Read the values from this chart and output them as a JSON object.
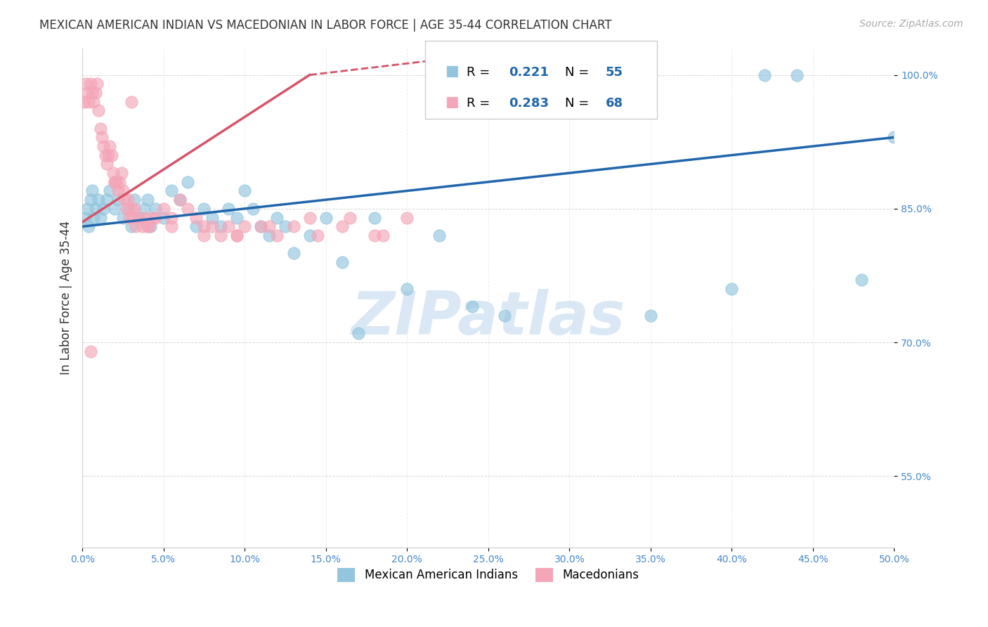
{
  "title": "MEXICAN AMERICAN INDIAN VS MACEDONIAN IN LABOR FORCE | AGE 35-44 CORRELATION CHART",
  "source": "Source: ZipAtlas.com",
  "ylabel": "In Labor Force | Age 35-44",
  "xlim": [
    0.0,
    50.0
  ],
  "ylim": [
    47.0,
    103.0
  ],
  "xticks": [
    0.0,
    5.0,
    10.0,
    15.0,
    20.0,
    25.0,
    30.0,
    35.0,
    40.0,
    45.0,
    50.0
  ],
  "xtick_labels": [
    "0.0%",
    "5.0%",
    "10.0%",
    "15.0%",
    "20.0%",
    "25.0%",
    "30.0%",
    "35.0%",
    "40.0%",
    "45.0%",
    "50.0%"
  ],
  "ytick_vals": [
    55.0,
    70.0,
    85.0,
    100.0
  ],
  "ytick_labels": [
    "55.0%",
    "70.0%",
    "85.0%",
    "100.0%"
  ],
  "legend_labels": [
    "Mexican American Indians",
    "Macedonians"
  ],
  "legend_R": [
    0.221,
    0.283
  ],
  "legend_N": [
    55,
    68
  ],
  "blue_color": "#92c5de",
  "pink_color": "#f4a6b8",
  "blue_line_color": "#2166ac",
  "pink_line_color": "#d6546a",
  "watermark": "ZIPatlas",
  "watermark_color": "#dae8f5",
  "blue_scatter_x": [
    0.2,
    0.3,
    0.4,
    0.5,
    0.6,
    0.7,
    0.8,
    1.0,
    1.1,
    1.3,
    1.5,
    1.7,
    2.0,
    2.2,
    2.5,
    2.8,
    3.0,
    3.2,
    3.5,
    3.8,
    4.0,
    4.2,
    4.5,
    5.0,
    5.5,
    6.0,
    6.5,
    7.0,
    7.5,
    8.0,
    8.5,
    9.0,
    9.5,
    10.0,
    10.5,
    11.0,
    11.5,
    12.0,
    12.5,
    13.0,
    14.0,
    15.0,
    16.0,
    17.0,
    18.0,
    20.0,
    22.0,
    24.0,
    26.0,
    35.0,
    40.0,
    42.0,
    44.0,
    48.0,
    50.0
  ],
  "blue_scatter_y": [
    84.0,
    85.0,
    83.0,
    86.0,
    87.0,
    84.0,
    85.0,
    86.0,
    84.0,
    85.0,
    86.0,
    87.0,
    85.0,
    86.0,
    84.0,
    85.0,
    83.0,
    86.0,
    84.0,
    85.0,
    86.0,
    83.0,
    85.0,
    84.0,
    87.0,
    86.0,
    88.0,
    83.0,
    85.0,
    84.0,
    83.0,
    85.0,
    84.0,
    87.0,
    85.0,
    83.0,
    82.0,
    84.0,
    83.0,
    80.0,
    82.0,
    84.0,
    79.0,
    71.0,
    84.0,
    76.0,
    82.0,
    74.0,
    73.0,
    73.0,
    76.0,
    100.0,
    100.0,
    77.0,
    93.0
  ],
  "pink_scatter_x": [
    0.1,
    0.2,
    0.3,
    0.4,
    0.5,
    0.6,
    0.7,
    0.8,
    0.9,
    1.0,
    1.1,
    1.2,
    1.3,
    1.4,
    1.5,
    1.6,
    1.7,
    1.8,
    1.9,
    2.0,
    2.1,
    2.2,
    2.3,
    2.4,
    2.5,
    2.6,
    2.7,
    2.8,
    2.9,
    3.0,
    3.1,
    3.2,
    3.3,
    3.5,
    3.7,
    3.9,
    4.1,
    4.3,
    4.5,
    5.0,
    5.5,
    6.0,
    6.5,
    7.0,
    7.5,
    8.0,
    8.5,
    9.0,
    9.5,
    10.0,
    11.0,
    12.0,
    13.0,
    14.0,
    16.0,
    18.0,
    2.0,
    3.0,
    4.0,
    5.5,
    7.5,
    9.5,
    11.5,
    14.5,
    16.5,
    18.5,
    20.0,
    0.5
  ],
  "pink_scatter_y": [
    97.0,
    99.0,
    98.0,
    97.0,
    99.0,
    98.0,
    97.0,
    98.0,
    99.0,
    96.0,
    94.0,
    93.0,
    92.0,
    91.0,
    90.0,
    91.0,
    92.0,
    91.0,
    89.0,
    88.0,
    88.0,
    87.0,
    88.0,
    89.0,
    87.0,
    86.0,
    85.0,
    86.0,
    84.0,
    85.0,
    84.0,
    85.0,
    83.0,
    84.0,
    83.0,
    84.0,
    83.0,
    84.0,
    84.0,
    85.0,
    84.0,
    86.0,
    85.0,
    84.0,
    82.0,
    83.0,
    82.0,
    83.0,
    82.0,
    83.0,
    83.0,
    82.0,
    83.0,
    84.0,
    83.0,
    82.0,
    88.0,
    97.0,
    83.0,
    83.0,
    83.0,
    82.0,
    83.0,
    82.0,
    84.0,
    82.0,
    84.0,
    69.0
  ],
  "blue_trend_x_start": 0.0,
  "blue_trend_x_end": 50.0,
  "pink_solid_x_start": 0.0,
  "pink_solid_x_end": 14.0,
  "pink_dash_x_start": 14.0,
  "pink_dash_x_end": 28.0,
  "grid_color": "#cccccc",
  "grid_style": "--",
  "tick_color": "#4488cc",
  "ylabel_color": "#333333",
  "title_color": "#333333",
  "source_color": "#aaaaaa"
}
